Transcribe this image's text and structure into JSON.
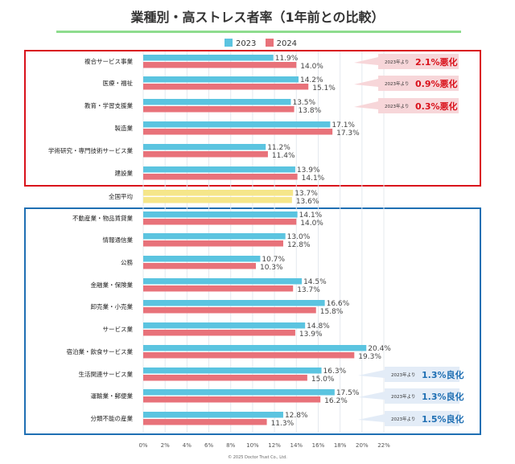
{
  "chart_data": {
    "type": "bar",
    "orientation": "horizontal",
    "title": "業種別・高ストレス者率（1年前との比較）",
    "xlim": [
      0,
      22
    ],
    "x_ticks": [
      "0%",
      "2%",
      "4%",
      "6%",
      "8%",
      "10%",
      "12%",
      "14%",
      "16%",
      "18%",
      "20%",
      "22%"
    ],
    "grid": true,
    "legend_position": "top",
    "series": [
      {
        "name": "2023",
        "color": "#5bc4e0"
      },
      {
        "name": "2024",
        "color": "#e8727a"
      }
    ],
    "categories": [
      "複合サービス事業",
      "医療・福祉",
      "教育・学習支援業",
      "製造業",
      "学術研究・専門技術サービス業",
      "建設業",
      "全国平均",
      "不動産業・物品賃貸業",
      "情報通信業",
      "公務",
      "金融業・保険業",
      "卸売業・小売業",
      "サービス業",
      "宿泊業・飲食サービス業",
      "生活関連サービス業",
      "運輸業・郵便業",
      "分類不能の産業"
    ],
    "values_2023": [
      11.9,
      14.2,
      13.5,
      17.1,
      11.2,
      13.9,
      13.7,
      14.1,
      13.0,
      10.7,
      14.5,
      16.6,
      14.8,
      20.4,
      16.3,
      17.5,
      12.8
    ],
    "values_2024": [
      14.0,
      15.1,
      13.8,
      17.3,
      11.4,
      14.1,
      13.6,
      14.0,
      12.8,
      10.3,
      13.7,
      15.8,
      13.9,
      19.3,
      15.0,
      16.2,
      11.3
    ],
    "labels_2023": [
      "11.9%",
      "14.2%",
      "13.5%",
      "17.1%",
      "11.2%",
      "13.9%",
      "13.7%",
      "14.1%",
      "13.0%",
      "10.7%",
      "14.5%",
      "16.6%",
      "14.8%",
      "20.4%",
      "16.3%",
      "17.5%",
      "12.8%"
    ],
    "labels_2024": [
      "14.0%",
      "15.1%",
      "13.8%",
      "17.3%",
      "11.4%",
      "14.1%",
      "13.6%",
      "14.0%",
      "12.8%",
      "10.3%",
      "13.7%",
      "15.8%",
      "13.9%",
      "19.3%",
      "15.0%",
      "16.2%",
      "11.3%"
    ],
    "average_colors": [
      "#f5e68a",
      "#f5e68a"
    ],
    "annotations": [
      {
        "category_index": 0,
        "prefix": "2023年より",
        "value": "2.1%悪化",
        "kind": "worse"
      },
      {
        "category_index": 1,
        "prefix": "2023年より",
        "value": "0.9%悪化",
        "kind": "worse"
      },
      {
        "category_index": 2,
        "prefix": "2023年より",
        "value": "0.3%悪化",
        "kind": "worse"
      },
      {
        "category_index": 14,
        "prefix": "2023年より",
        "value": "1.3%良化",
        "kind": "better"
      },
      {
        "category_index": 15,
        "prefix": "2023年より",
        "value": "1.3%良化",
        "kind": "better"
      },
      {
        "category_index": 16,
        "prefix": "2023年より",
        "value": "1.5%良化",
        "kind": "better"
      }
    ],
    "group_colors": {
      "worse": "#d9111b",
      "better": "#1f6fb3"
    }
  },
  "footer": "© 2025 Doctor Trust Co., Ltd."
}
